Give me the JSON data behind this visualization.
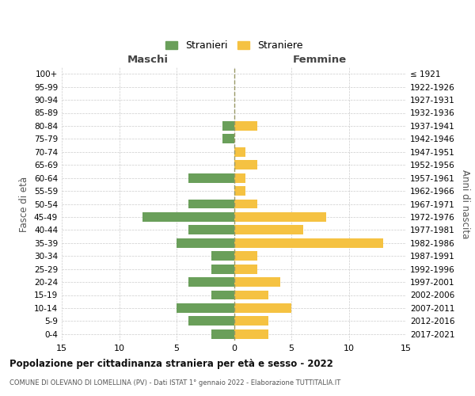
{
  "age_groups": [
    "100+",
    "95-99",
    "90-94",
    "85-89",
    "80-84",
    "75-79",
    "70-74",
    "65-69",
    "60-64",
    "55-59",
    "50-54",
    "45-49",
    "40-44",
    "35-39",
    "30-34",
    "25-29",
    "20-24",
    "15-19",
    "10-14",
    "5-9",
    "0-4"
  ],
  "birth_years": [
    "≤ 1921",
    "1922-1926",
    "1927-1931",
    "1932-1936",
    "1937-1941",
    "1942-1946",
    "1947-1951",
    "1952-1956",
    "1957-1961",
    "1962-1966",
    "1967-1971",
    "1972-1976",
    "1977-1981",
    "1982-1986",
    "1987-1991",
    "1992-1996",
    "1997-2001",
    "2002-2006",
    "2007-2011",
    "2012-2016",
    "2017-2021"
  ],
  "maschi": [
    0,
    0,
    0,
    0,
    1,
    1,
    0,
    0,
    4,
    0,
    4,
    8,
    4,
    5,
    2,
    2,
    4,
    2,
    5,
    4,
    2
  ],
  "femmine": [
    0,
    0,
    0,
    0,
    2,
    0,
    1,
    2,
    1,
    1,
    2,
    8,
    6,
    13,
    2,
    2,
    4,
    3,
    5,
    3,
    3
  ],
  "color_maschi": "#6a9f5a",
  "color_femmine": "#f5c242",
  "title": "Popolazione per cittadinanza straniera per età e sesso - 2022",
  "subtitle": "COMUNE DI OLEVANO DI LOMELLINA (PV) - Dati ISTAT 1° gennaio 2022 - Elaborazione TUTTITALIA.IT",
  "xlabel_left": "Maschi",
  "xlabel_right": "Femmine",
  "ylabel_left": "Fasce di età",
  "ylabel_right": "Anni di nascita",
  "legend_maschi": "Stranieri",
  "legend_femmine": "Straniere",
  "xlim": 15,
  "xticks": [
    -15,
    -10,
    -5,
    0,
    5,
    10,
    15
  ],
  "xtick_labels": [
    "15",
    "10",
    "5",
    "0",
    "5",
    "10",
    "15"
  ],
  "background_color": "#ffffff",
  "grid_color": "#cccccc",
  "center_line_color": "#999966",
  "bar_height": 0.72
}
